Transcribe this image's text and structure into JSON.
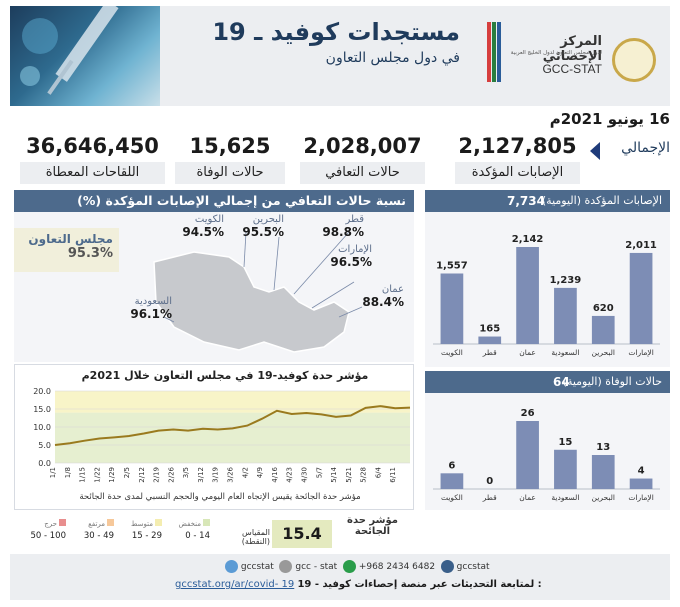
{
  "header": {
    "title": "مستجدات كوفيد ـ 19",
    "subtitle": "في دول مجلس التعاون",
    "org_ar": "المركز الإحصائي",
    "org_ar_sub": "لدول مجلس التعاون لدول الخليج العربية",
    "org_en": "GCC-STAT"
  },
  "date": "16 يونيو 2021م",
  "totals": {
    "label": "الإجمالي",
    "confirmed": {
      "value": "2,127,805",
      "label": "الإصابات المؤكدة"
    },
    "recovered": {
      "value": "2,028,007",
      "label": "حالات التعافي"
    },
    "deaths": {
      "value": "15,625",
      "label": "حالات الوفاة"
    },
    "vaccines": {
      "value": "36,646,450",
      "label": "اللقاحات المعطاة"
    }
  },
  "recovery": {
    "title": "نسبة حالات التعافي من إجمالي الإصابات المؤكدة (%)",
    "gcc_label": "مجلس التعاون",
    "gcc_value": "95.3%",
    "countries": [
      {
        "name": "الكويت",
        "value": "94.5%"
      },
      {
        "name": "البحرين",
        "value": "95.5%"
      },
      {
        "name": "قطر",
        "value": "98.8%"
      },
      {
        "name": "الإمارات",
        "value": "96.5%"
      },
      {
        "name": "السعودية",
        "value": "96.1%"
      },
      {
        "name": "عمان",
        "value": "88.4%"
      }
    ]
  },
  "daily_confirmed": {
    "title": "الإصابات المؤكدة (اليومية)",
    "total": "7,734"
  },
  "daily_deaths": {
    "title": "حالات الوفاة (اليومية)",
    "total": "64"
  },
  "index": {
    "title": "مؤشر حدة كوفيد-19 في مجلس التعاون خلال 2021م",
    "note": "مؤشر حدة الجائحة يقيس الإتجاه العام اليومي والحجم النسبي لمدى حدة الجائحة",
    "label": "مؤشر حدة الجائحة",
    "value": "15.4",
    "scale_label": "المقياس (النقطة)",
    "scale": [
      {
        "name": "منخفض",
        "range": "0 - 14",
        "color": "#d8e7b8"
      },
      {
        "name": "متوسط",
        "range": "15 - 29",
        "color": "#f4edb0"
      },
      {
        "name": "مرتفع",
        "range": "30 - 49",
        "color": "#f6c89a"
      },
      {
        "name": "حرج",
        "range": "50 - 100",
        "color": "#e88e8e"
      }
    ]
  },
  "footer": {
    "twitter": "gccstat",
    "web": "gcc - stat",
    "phone": "+968 2434 6482",
    "handle": "gccstat",
    "note": "لمتابعة التحديثات عبر منصة إحصاءات كوفيد - 19 :",
    "url": "gccstat.org/ar/covid- 19"
  },
  "chart_data": [
    {
      "type": "bar",
      "title": "الإصابات المؤكدة (اليومية)",
      "categories": [
        "الإمارات",
        "البحرين",
        "السعودية",
        "عمان",
        "قطر",
        "الكويت"
      ],
      "values": [
        2011,
        620,
        1239,
        2142,
        165,
        1557
      ]
    },
    {
      "type": "bar",
      "title": "حالات الوفاة (اليومية)",
      "categories": [
        "الإمارات",
        "البحرين",
        "السعودية",
        "عمان",
        "قطر",
        "الكويت"
      ],
      "values": [
        4,
        13,
        15,
        26,
        0,
        6
      ]
    },
    {
      "type": "line",
      "title": "مؤشر حدة كوفيد-19 في مجلس التعاون خلال 2021م",
      "ylim": [
        0,
        20
      ],
      "yticks": [
        0.0,
        5.0,
        10.0,
        15.0,
        20.0
      ],
      "xticks": [
        "1/1",
        "1/8",
        "1/15",
        "1/22",
        "1/29",
        "2/5",
        "2/12",
        "2/19",
        "2/26",
        "3/5",
        "3/12",
        "3/19",
        "3/26",
        "4/2",
        "4/9",
        "4/16",
        "4/23",
        "4/30",
        "5/7",
        "5/14",
        "5/21",
        "5/28",
        "6/4",
        "6/11"
      ],
      "x": [
        "1/1",
        "1/8",
        "1/15",
        "1/22",
        "1/29",
        "2/5",
        "2/12",
        "2/19",
        "2/26",
        "3/5",
        "3/12",
        "3/19",
        "3/26",
        "4/2",
        "4/9",
        "4/16",
        "4/23",
        "4/30",
        "5/7",
        "5/14",
        "5/21",
        "5/28",
        "6/4",
        "6/11",
        "6/16"
      ],
      "values": [
        5.0,
        5.5,
        6.2,
        6.8,
        7.1,
        7.5,
        8.2,
        9.0,
        9.3,
        9.0,
        9.5,
        9.3,
        9.6,
        10.4,
        12.3,
        14.5,
        13.6,
        13.9,
        13.5,
        12.8,
        13.2,
        15.3,
        15.8,
        15.2,
        15.4
      ],
      "bands": [
        {
          "from": 0,
          "to": 14,
          "color": "#e6efd0"
        },
        {
          "from": 14,
          "to": 20,
          "color": "#f8f4c8"
        }
      ]
    }
  ]
}
